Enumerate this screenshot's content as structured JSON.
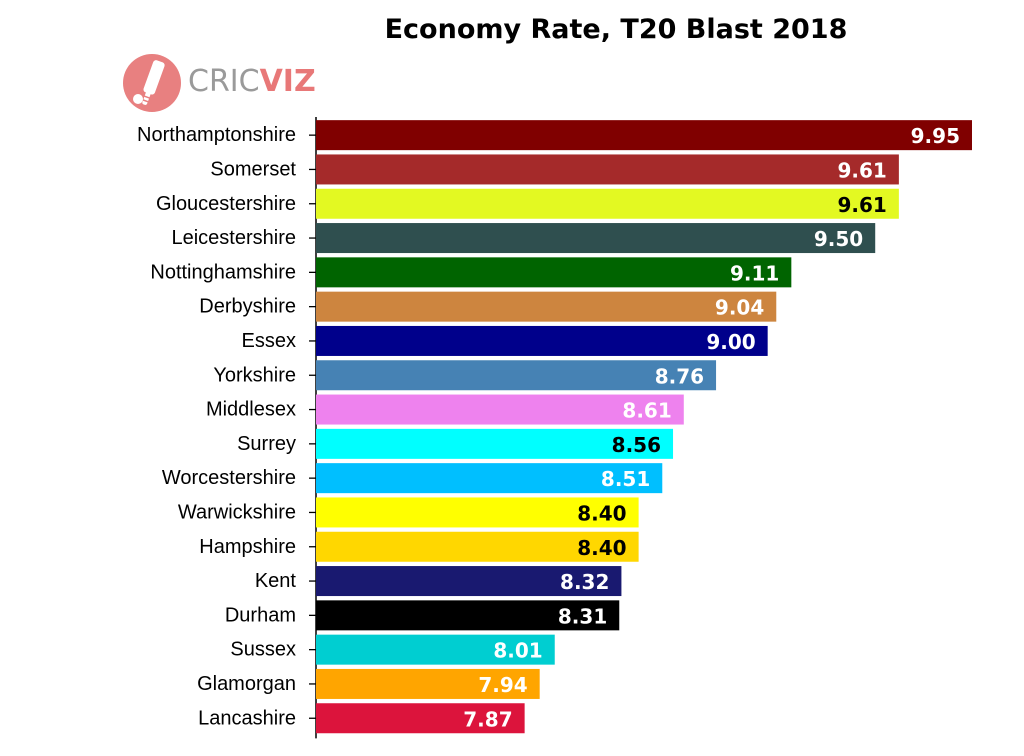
{
  "title": "Economy Rate, T20 Blast 2018",
  "logo": {
    "part1": "CRIC",
    "part2": "VIZ"
  },
  "chart_data": {
    "type": "bar",
    "orientation": "horizontal",
    "title": "Economy Rate, T20 Blast 2018",
    "xlabel": "",
    "ylabel": "",
    "xlim": [
      6.9,
      10.0
    ],
    "grid": false,
    "categories": [
      "Northamptonshire",
      "Somerset",
      "Gloucestershire",
      "Leicestershire",
      "Nottinghamshire",
      "Derbyshire",
      "Essex",
      "Yorkshire",
      "Middlesex",
      "Surrey",
      "Worcestershire",
      "Warwickshire",
      "Hampshire",
      "Kent",
      "Durham",
      "Sussex",
      "Glamorgan",
      "Lancashire"
    ],
    "values": [
      9.95,
      9.61,
      9.61,
      9.5,
      9.11,
      9.04,
      9.0,
      8.76,
      8.61,
      8.56,
      8.51,
      8.4,
      8.4,
      8.32,
      8.31,
      8.01,
      7.94,
      7.87
    ],
    "value_labels": [
      "9.95",
      "9.61",
      "9.61",
      "9.50",
      "9.11",
      "9.04",
      "9.00",
      "8.76",
      "8.61",
      "8.56",
      "8.51",
      "8.40",
      "8.40",
      "8.32",
      "8.31",
      "8.01",
      "7.94",
      "7.87"
    ],
    "colors": [
      "#800000",
      "#a52a2a",
      "#e3f922",
      "#2f4f4f",
      "#006400",
      "#cd853f",
      "#00008b",
      "#4682b4",
      "#ee82ee",
      "#00ffff",
      "#00bfff",
      "#ffff00",
      "#ffd700",
      "#191970",
      "#000000",
      "#00ced1",
      "#ffa500",
      "#dc143c"
    ],
    "label_colors": [
      "#ffffff",
      "#ffffff",
      "#000000",
      "#ffffff",
      "#ffffff",
      "#ffffff",
      "#ffffff",
      "#ffffff",
      "#ffffff",
      "#000000",
      "#ffffff",
      "#000000",
      "#000000",
      "#ffffff",
      "#ffffff",
      "#ffffff",
      "#ffffff",
      "#ffffff"
    ]
  }
}
